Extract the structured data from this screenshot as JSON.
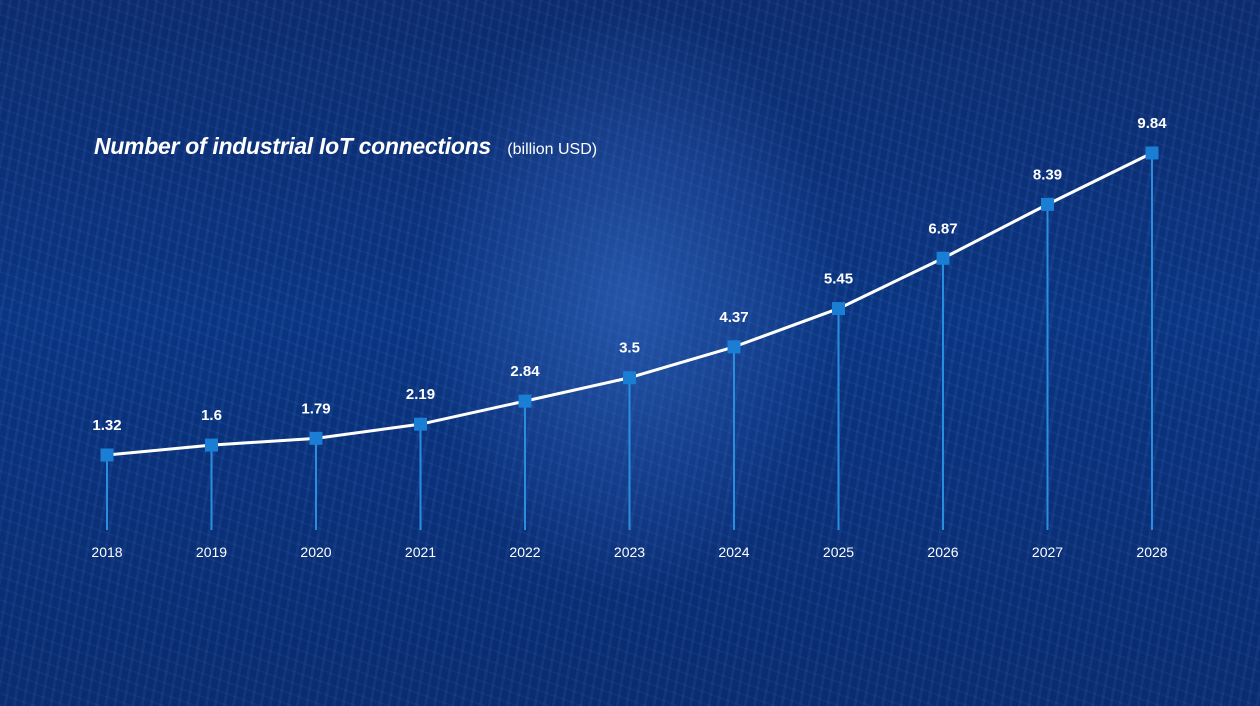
{
  "chart_data": {
    "type": "line",
    "title": "Number of industrial IoT connections",
    "unit": "(billion USD)",
    "categories": [
      "2018",
      "2019",
      "2020",
      "2021",
      "2022",
      "2023",
      "2024",
      "2025",
      "2026",
      "2027",
      "2028"
    ],
    "values": [
      1.32,
      1.6,
      1.79,
      2.19,
      2.84,
      3.5,
      4.37,
      5.45,
      6.87,
      8.39,
      9.84
    ],
    "data_labels": [
      "1.32",
      "1.6",
      "1.79",
      "2.19",
      "2.84",
      "3.5",
      "4.37",
      "5.45",
      "6.87",
      "8.39",
      "9.84"
    ],
    "grid": false,
    "legend": "none",
    "colors": {
      "line": "#ffffff",
      "marker": "#1a7fd4",
      "stem": "#2a8ee0",
      "text": "#ffffff"
    }
  }
}
